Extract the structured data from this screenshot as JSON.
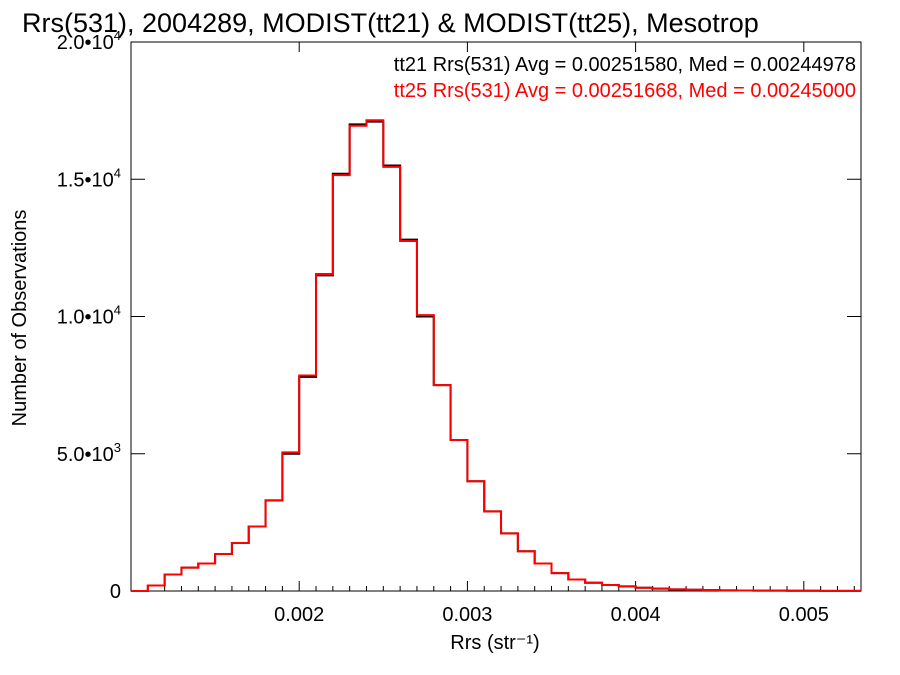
{
  "chart_data": {
    "type": "line",
    "title": "Rrs(531), 2004289, MODIST(tt21) & MODIST(tt25), Mesotrop",
    "xlabel": "Rrs (str⁻¹)",
    "ylabel": "Number of Observations",
    "xlim": [
      0.001,
      0.00534
    ],
    "ylim": [
      0,
      20000
    ],
    "x_ticks": [
      {
        "value": 0.002,
        "label": "0.002"
      },
      {
        "value": 0.003,
        "label": "0.003"
      },
      {
        "value": 0.004,
        "label": "0.004"
      },
      {
        "value": 0.005,
        "label": "0.005"
      }
    ],
    "y_ticks": [
      {
        "value": 0,
        "label": "0",
        "exp": ""
      },
      {
        "value": 5000,
        "label": "5.0•10",
        "exp": "3"
      },
      {
        "value": 10000,
        "label": "1.0•10",
        "exp": "4"
      },
      {
        "value": 15000,
        "label": "1.5•10",
        "exp": "4"
      },
      {
        "value": 20000,
        "label": "2.0•10",
        "exp": "4"
      }
    ],
    "step": "histogram",
    "x": [
      0.001,
      0.0011,
      0.0012,
      0.0013,
      0.0014,
      0.0015,
      0.0016,
      0.0017,
      0.0018,
      0.0019,
      0.002,
      0.0021,
      0.0022,
      0.0023,
      0.0024,
      0.0025,
      0.0026,
      0.0027,
      0.0028,
      0.0029,
      0.003,
      0.0031,
      0.0032,
      0.0033,
      0.0034,
      0.0035,
      0.0036,
      0.0037,
      0.0038,
      0.0039,
      0.004,
      0.0041,
      0.0042,
      0.0043,
      0.0044,
      0.0045,
      0.0046,
      0.0047,
      0.0048,
      0.0049,
      0.005,
      0.0051,
      0.0052,
      0.0053
    ],
    "series": [
      {
        "name": "tt21",
        "color": "#000000",
        "values": [
          0,
          200,
          600,
          850,
          1000,
          1350,
          1750,
          2350,
          3300,
          5000,
          7800,
          11500,
          15200,
          17000,
          17100,
          15500,
          12800,
          10000,
          7500,
          5500,
          4000,
          2900,
          2100,
          1450,
          1000,
          650,
          420,
          300,
          220,
          170,
          120,
          85,
          60,
          45,
          35,
          25,
          20,
          15,
          12,
          10,
          8,
          6,
          5,
          4
        ]
      },
      {
        "name": "tt25",
        "color": "#ff0000",
        "values": [
          0,
          200,
          600,
          850,
          1000,
          1350,
          1750,
          2350,
          3300,
          5050,
          7850,
          11550,
          15150,
          16950,
          17150,
          15450,
          12750,
          10050,
          7500,
          5500,
          4000,
          2900,
          2100,
          1450,
          1000,
          650,
          420,
          300,
          220,
          170,
          120,
          85,
          60,
          45,
          35,
          25,
          20,
          15,
          12,
          10,
          8,
          6,
          5,
          4
        ]
      }
    ],
    "annotations": [
      {
        "text": "tt21 Rrs(531) Avg = 0.00251580, Med = 0.00244978",
        "color": "#000000"
      },
      {
        "text": "tt25 Rrs(531) Avg = 0.00251668, Med = 0.00245000",
        "color": "#ff0000"
      }
    ],
    "grid": false,
    "legend": "top-right"
  }
}
